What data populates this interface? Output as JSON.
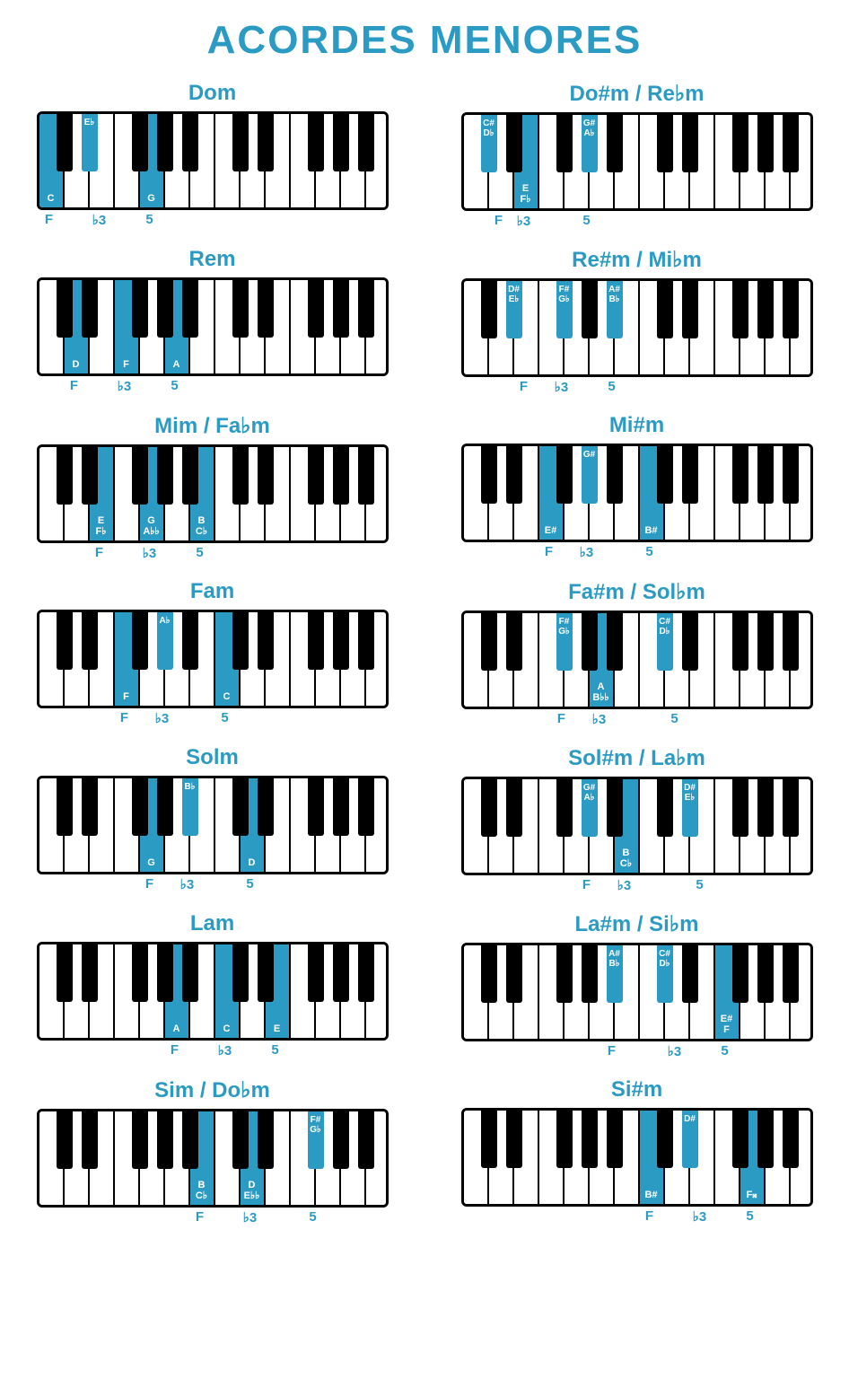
{
  "title": "ACORDES MENORES",
  "colors": {
    "accent": "#2b9bc4",
    "black": "#000000",
    "white": "#ffffff"
  },
  "interval_names": [
    "F",
    "♭3",
    "5"
  ],
  "white_count": 14,
  "white_width": 28,
  "black_width": 18,
  "black_positions": [
    0,
    1,
    3,
    4,
    5,
    7,
    8,
    10,
    11,
    12
  ],
  "chords": [
    {
      "name": "Dom",
      "highlights": [
        {
          "type": "white",
          "index": 0,
          "label": "C"
        },
        {
          "type": "black",
          "bindex": 1,
          "label": "E♭"
        },
        {
          "type": "white",
          "index": 4,
          "label": "G"
        }
      ],
      "intervals": [
        0,
        2,
        4
      ]
    },
    {
      "name": "Do#m / Re♭m",
      "highlights": [
        {
          "type": "black",
          "bindex": 0,
          "label": "C#\nD♭"
        },
        {
          "type": "white",
          "index": 2,
          "label": "E\nF♭"
        },
        {
          "type": "black",
          "bindex": 3,
          "label": "G#\nA♭"
        }
      ],
      "intervals": [
        1,
        2,
        4.5
      ]
    },
    {
      "name": "Rem",
      "highlights": [
        {
          "type": "white",
          "index": 1,
          "label": "D"
        },
        {
          "type": "white",
          "index": 3,
          "label": "F"
        },
        {
          "type": "white",
          "index": 5,
          "label": "A"
        }
      ],
      "intervals": [
        1,
        3,
        5
      ]
    },
    {
      "name": "Re#m / Mi♭m",
      "highlights": [
        {
          "type": "black",
          "bindex": 1,
          "label": "D#\nE♭"
        },
        {
          "type": "black",
          "bindex": 2,
          "label": "F#\nG♭"
        },
        {
          "type": "black",
          "bindex": 4,
          "label": "A#\nB♭"
        }
      ],
      "intervals": [
        2,
        3.5,
        5.5
      ]
    },
    {
      "name": "Mim / Fa♭m",
      "highlights": [
        {
          "type": "white",
          "index": 2,
          "label": "E\nF♭"
        },
        {
          "type": "white",
          "index": 4,
          "label": "G\nA♭♭"
        },
        {
          "type": "white",
          "index": 6,
          "label": "B\nC♭"
        }
      ],
      "intervals": [
        2,
        4,
        6
      ]
    },
    {
      "name": "Mi#m",
      "highlights": [
        {
          "type": "white",
          "index": 3,
          "label": "E#"
        },
        {
          "type": "black",
          "bindex": 3,
          "label": "G#"
        },
        {
          "type": "white",
          "index": 7,
          "label": "B#"
        }
      ],
      "intervals": [
        3,
        4.5,
        7
      ]
    },
    {
      "name": "Fam",
      "highlights": [
        {
          "type": "white",
          "index": 3,
          "label": "F"
        },
        {
          "type": "black",
          "bindex": 3,
          "label": "A♭"
        },
        {
          "type": "white",
          "index": 7,
          "label": "C"
        }
      ],
      "intervals": [
        3,
        4.5,
        7
      ]
    },
    {
      "name": "Fa#m / Sol♭m",
      "highlights": [
        {
          "type": "black",
          "bindex": 2,
          "label": "F#\nG♭"
        },
        {
          "type": "white",
          "index": 5,
          "label": "A\nB♭♭"
        },
        {
          "type": "black",
          "bindex": 5,
          "label": "C#\nD♭"
        }
      ],
      "intervals": [
        3.5,
        5,
        8
      ]
    },
    {
      "name": "Solm",
      "highlights": [
        {
          "type": "white",
          "index": 4,
          "label": "G"
        },
        {
          "type": "black",
          "bindex": 4,
          "label": "B♭"
        },
        {
          "type": "white",
          "index": 8,
          "label": "D"
        }
      ],
      "intervals": [
        4,
        5.5,
        8
      ]
    },
    {
      "name": "Sol#m / La♭m",
      "highlights": [
        {
          "type": "black",
          "bindex": 3,
          "label": "G#\nA♭"
        },
        {
          "type": "white",
          "index": 6,
          "label": "B\nC♭"
        },
        {
          "type": "black",
          "bindex": 6,
          "label": "D#\nE♭"
        }
      ],
      "intervals": [
        4.5,
        6,
        9
      ]
    },
    {
      "name": "Lam",
      "highlights": [
        {
          "type": "white",
          "index": 5,
          "label": "A"
        },
        {
          "type": "white",
          "index": 7,
          "label": "C"
        },
        {
          "type": "white",
          "index": 9,
          "label": "E"
        }
      ],
      "intervals": [
        5,
        7,
        9
      ]
    },
    {
      "name": "La#m / Si♭m",
      "highlights": [
        {
          "type": "black",
          "bindex": 4,
          "label": "A#\nB♭"
        },
        {
          "type": "black",
          "bindex": 5,
          "label": "C#\nD♭"
        },
        {
          "type": "white",
          "index": 10,
          "label": "E#\nF"
        }
      ],
      "intervals": [
        5.5,
        8,
        10
      ]
    },
    {
      "name": "Sim / Do♭m",
      "highlights": [
        {
          "type": "white",
          "index": 6,
          "label": "B\nC♭"
        },
        {
          "type": "white",
          "index": 8,
          "label": "D\nE♭♭"
        },
        {
          "type": "black",
          "bindex": 7,
          "label": "F#\nG♭"
        }
      ],
      "intervals": [
        6,
        8,
        10.5
      ]
    },
    {
      "name": "Si#m",
      "highlights": [
        {
          "type": "white",
          "index": 7,
          "label": "B#"
        },
        {
          "type": "black",
          "bindex": 6,
          "label": "D#"
        },
        {
          "type": "white",
          "index": 11,
          "label": "F𝄪"
        }
      ],
      "intervals": [
        7,
        9,
        11
      ]
    }
  ]
}
